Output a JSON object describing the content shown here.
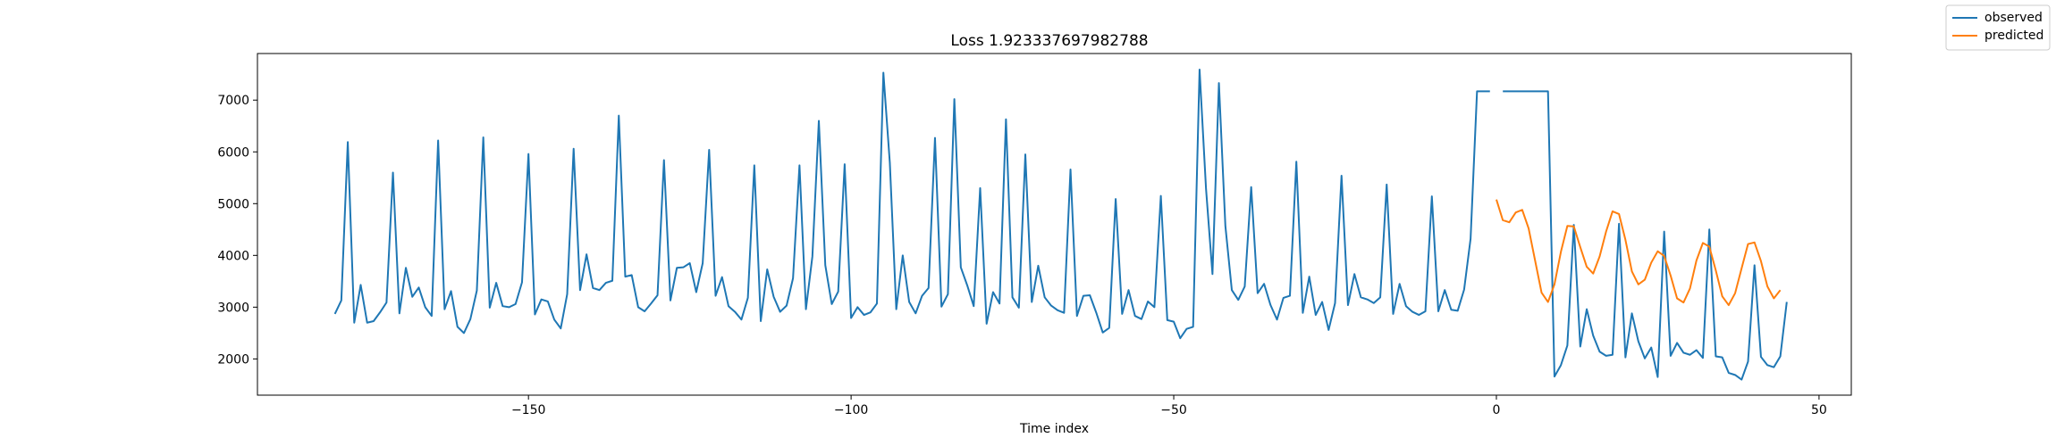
{
  "chart_data": {
    "type": "line",
    "title": "Loss 1.923337697982788",
    "xlabel": "Time index",
    "ylabel": "",
    "xlim": [
      -192,
      55
    ],
    "ylim": [
      1300,
      7900
    ],
    "xticks": [
      -150,
      -100,
      -50,
      0,
      50
    ],
    "xtick_labels": [
      "−150",
      "−100",
      "−50",
      "0",
      "50"
    ],
    "yticks": [
      2000,
      3000,
      4000,
      5000,
      6000,
      7000
    ],
    "ytick_labels": [
      "2000",
      "3000",
      "4000",
      "5000",
      "6000",
      "7000"
    ],
    "grid": false,
    "legend_position": "top-right (outside plot)",
    "series": [
      {
        "name": "observed",
        "color": "#1f77b4",
        "x_start": -180,
        "values": [
          2870,
          3130,
          6190,
          2700,
          3430,
          2700,
          2730,
          2900,
          3090,
          5600,
          2880,
          3760,
          3200,
          3380,
          3000,
          2830,
          6220,
          2960,
          3310,
          2620,
          2500,
          2770,
          3320,
          6280,
          2990,
          3470,
          3020,
          3000,
          3060,
          3480,
          5960,
          2860,
          3150,
          3110,
          2760,
          2590,
          3250,
          6060,
          3330,
          4020,
          3370,
          3330,
          3470,
          3510,
          6700,
          3590,
          3620,
          3000,
          2920,
          3070,
          3230,
          5840,
          3130,
          3760,
          3770,
          3850,
          3290,
          3850,
          6040,
          3220,
          3580,
          3020,
          2910,
          2760,
          3180,
          5740,
          2730,
          3730,
          3200,
          2910,
          3030,
          3560,
          5740,
          2960,
          3980,
          6600,
          3810,
          3060,
          3300,
          5760,
          2790,
          3000,
          2850,
          2900,
          3070,
          7530,
          5790,
          2960,
          4000,
          3100,
          2880,
          3220,
          3370,
          6270,
          3010,
          3250,
          7020,
          3770,
          3420,
          3020,
          5300,
          2680,
          3290,
          3070,
          6630,
          3190,
          2990,
          5950,
          3100,
          3800,
          3190,
          3030,
          2940,
          2890,
          5660,
          2830,
          3220,
          3230,
          2890,
          2510,
          2600,
          5090,
          2870,
          3330,
          2830,
          2770,
          3110,
          3000,
          5150,
          2750,
          2720,
          2400,
          2580,
          2620,
          7590,
          5290,
          3640,
          7330,
          4570,
          3330,
          3140,
          3400,
          5320,
          3270,
          3450,
          3040,
          2760,
          3180,
          3220,
          5810,
          2890,
          3590,
          2850,
          3100,
          2560,
          3080,
          5540,
          3040,
          3640,
          3190,
          3150,
          3080,
          3190,
          5370,
          2870,
          3450,
          3020,
          2910,
          2850,
          2920,
          5140,
          2920,
          3330,
          2950,
          2930,
          3340,
          4320,
          7170,
          7170,
          7170,
          null,
          7170,
          7170,
          7170,
          7170,
          7170,
          7170,
          7170,
          7170,
          1660,
          1880,
          2260,
          4590,
          2240,
          2960,
          2450,
          2140,
          2060,
          2080,
          4610,
          2030,
          2880,
          2340,
          2010,
          2220,
          1650,
          4460,
          2060,
          2310,
          2120,
          2080,
          2170,
          2020,
          4500,
          2050,
          2030,
          1730,
          1690,
          1600,
          1950,
          3810,
          2040,
          1880,
          1840,
          2050,
          3100
        ]
      },
      {
        "name": "predicted",
        "color": "#ff7f0e",
        "x_start": 0,
        "values": [
          5080,
          4680,
          4640,
          4830,
          4880,
          4520,
          3900,
          3280,
          3100,
          3440,
          4070,
          4570,
          4560,
          4160,
          3780,
          3650,
          3980,
          4460,
          4850,
          4800,
          4300,
          3690,
          3440,
          3530,
          3860,
          4080,
          3990,
          3610,
          3170,
          3090,
          3360,
          3900,
          4240,
          4170,
          3710,
          3210,
          3040,
          3270,
          3750,
          4220,
          4250,
          3890,
          3400,
          3170,
          3330
        ]
      }
    ]
  }
}
